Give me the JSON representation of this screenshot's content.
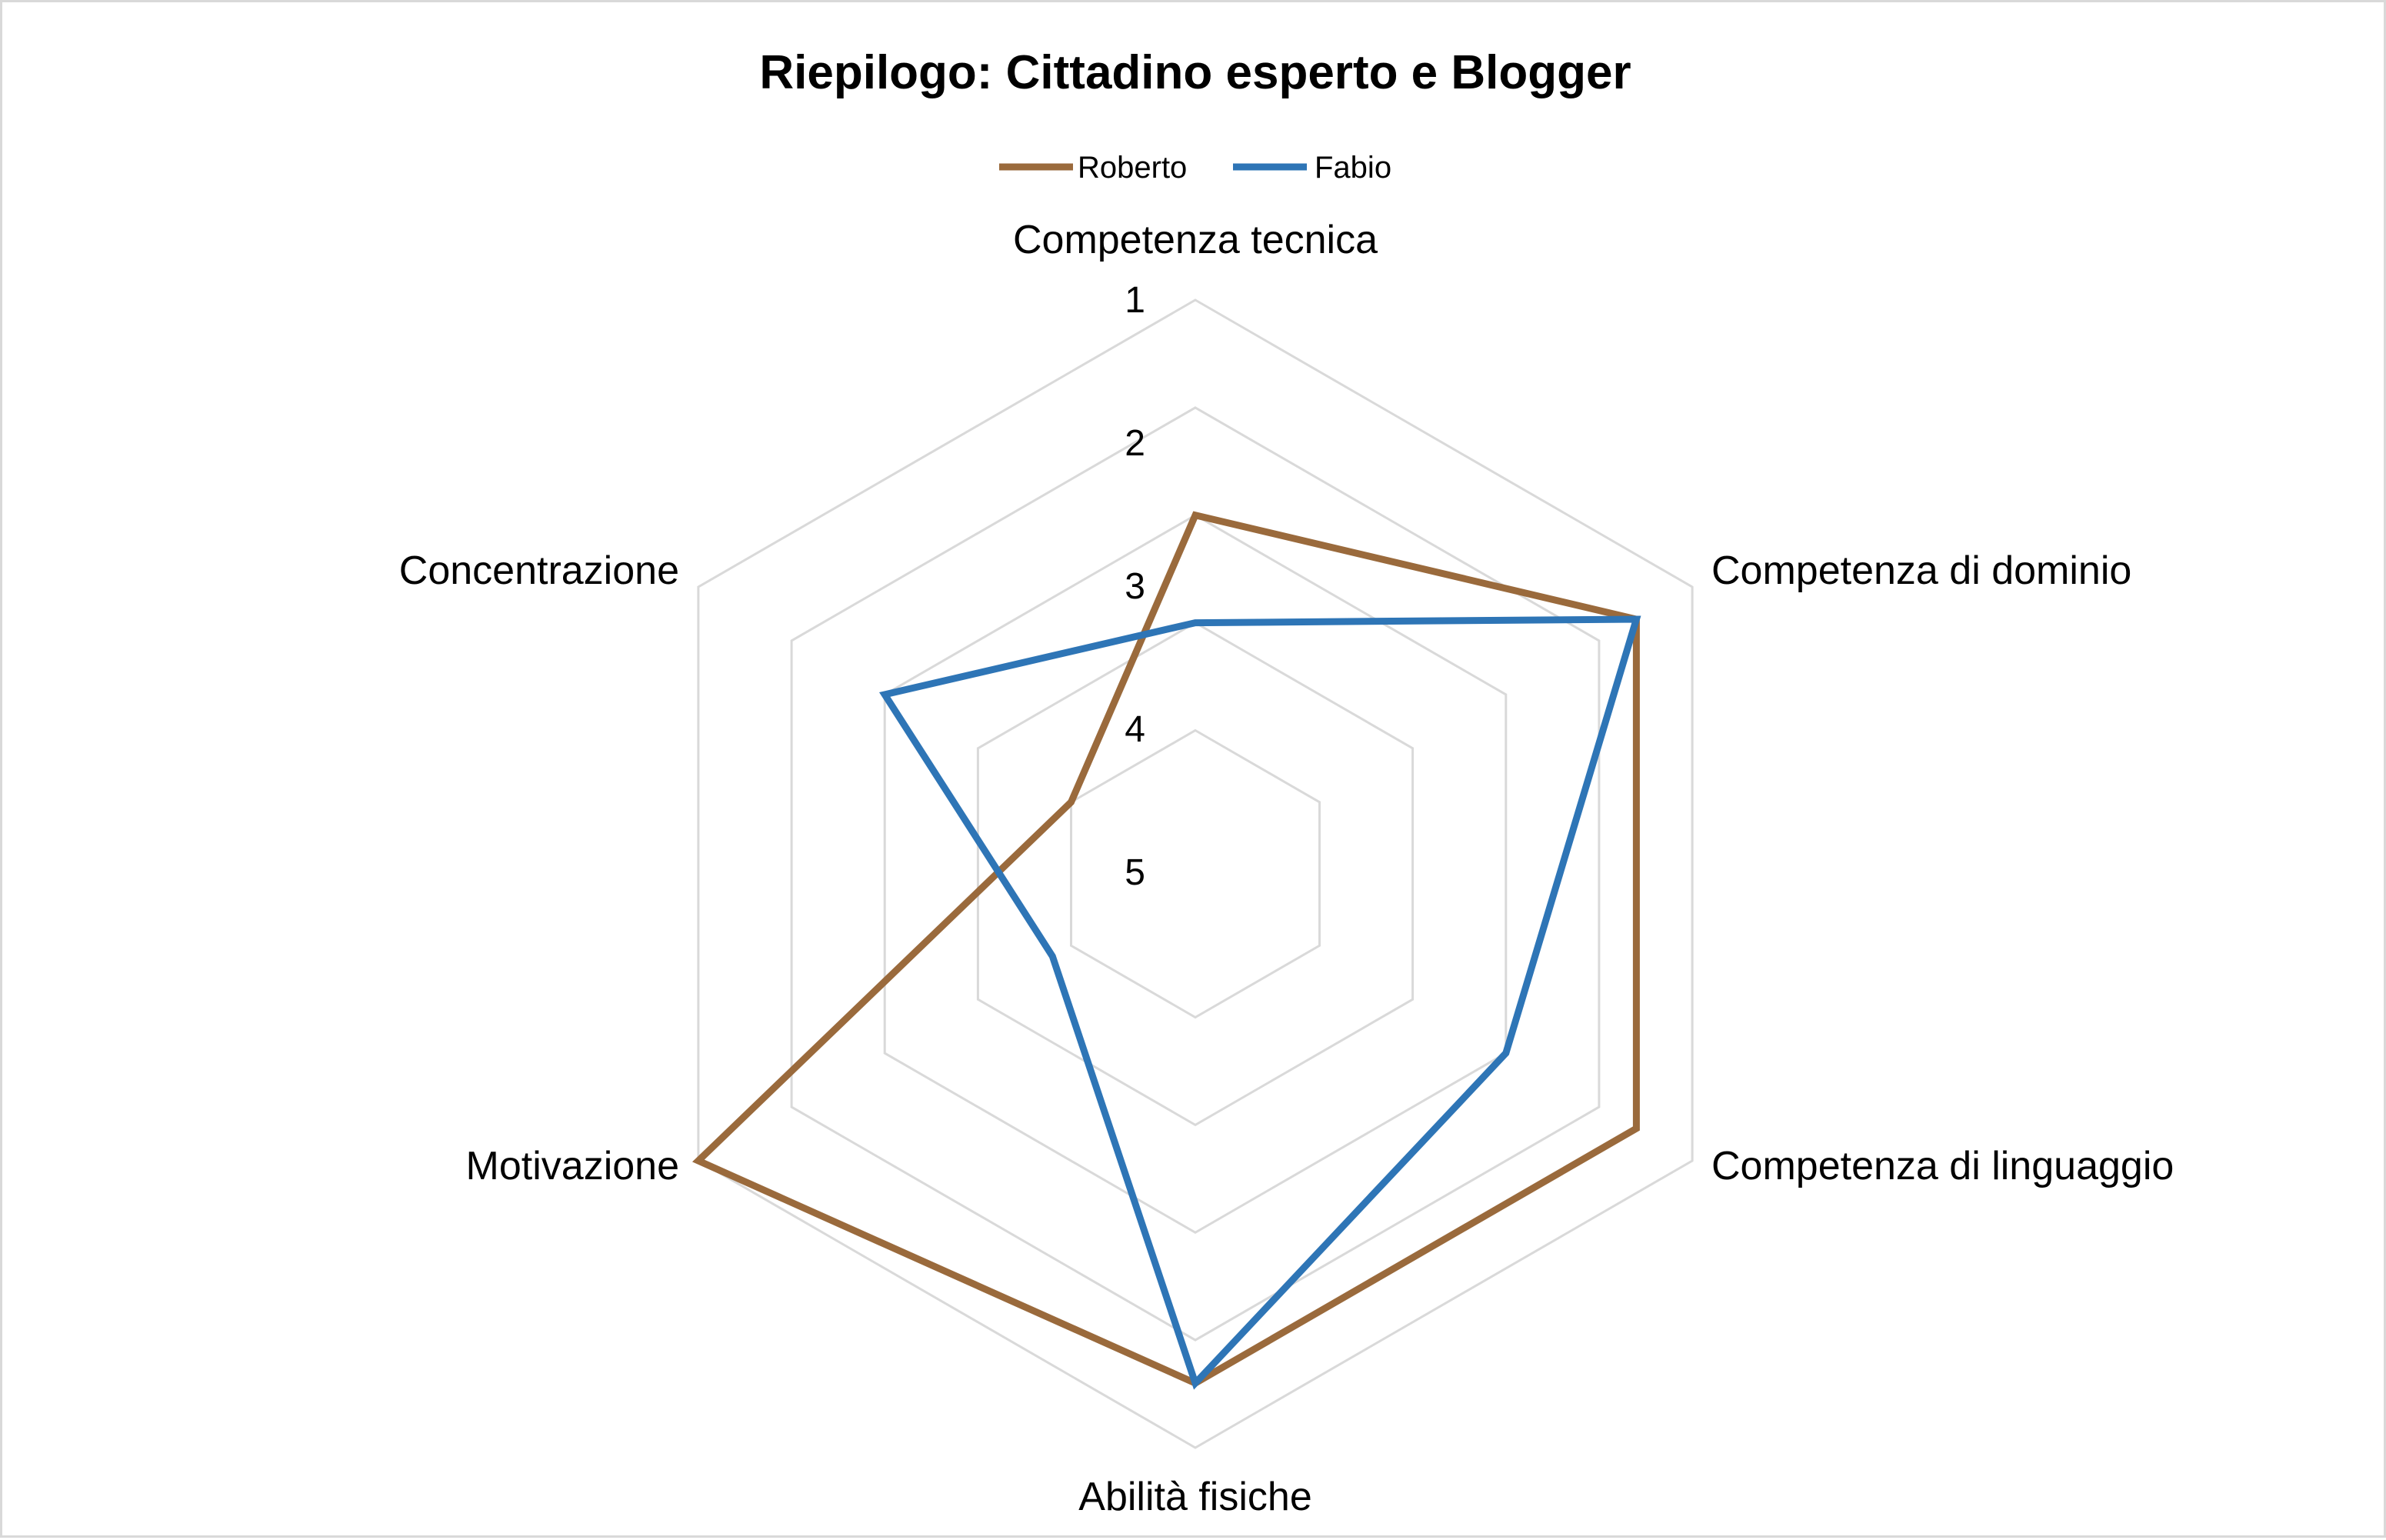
{
  "chart_data": {
    "type": "radar",
    "title": "Riepilogo: Cittadino esperto e Blogger",
    "categories": [
      "Competenza tecnica",
      "Competenza di dominio",
      "Competenza di linguaggio",
      "Abilità fisiche",
      "Motivazione",
      "Concentrazione"
    ],
    "ticks": [
      "1",
      "2",
      "3",
      "4",
      "5"
    ],
    "axis_range": [
      1,
      5
    ],
    "axis_reversed": true,
    "grid": true,
    "legend_position": "top",
    "series": [
      {
        "name": "Roberto",
        "color": "#9a6a3c",
        "values": [
          3,
          1.6,
          1.6,
          1.6,
          1,
          5
        ]
      },
      {
        "name": "Fabio",
        "color": "#2e75b6",
        "values": [
          4,
          1.6,
          3,
          1.6,
          4.8,
          3
        ]
      }
    ]
  }
}
